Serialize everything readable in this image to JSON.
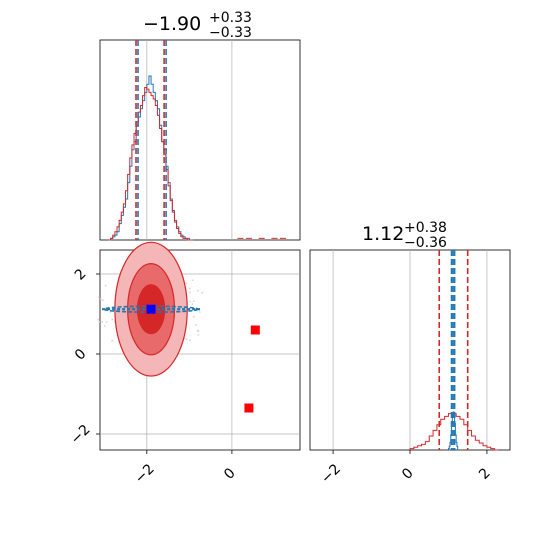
{
  "chart_data": {
    "type": "corner",
    "colors": {
      "blue": "#1f77b4",
      "red": "#d62728",
      "marker_blue": "#0000ff",
      "marker_red": "#ff0000",
      "grid": "#b0b0b0"
    },
    "param1": {
      "title_main": "−1.90",
      "title_plus": "+0.33",
      "title_minus": "−0.33",
      "range": [
        -3.1,
        1.6
      ],
      "quantile_lines": [
        -2.23,
        -1.9,
        -1.57
      ],
      "ticks": [
        -2,
        0
      ],
      "grid_lines": [
        -2,
        0
      ],
      "blue_bin_edges": [
        -2.9,
        -2.85,
        -2.8,
        -2.75,
        -2.7,
        -2.65,
        -2.6,
        -2.55,
        -2.5,
        -2.45,
        -2.4,
        -2.35,
        -2.3,
        -2.25,
        -2.2,
        -2.15,
        -2.1,
        -2.05,
        -2.0,
        -1.95,
        -1.9,
        -1.85,
        -1.8,
        -1.75,
        -1.7,
        -1.65,
        -1.6,
        -1.55,
        -1.5,
        -1.45,
        -1.4,
        -1.35,
        -1.3,
        -1.25,
        -1.2,
        -1.15,
        -1.1,
        -1.05,
        -1.0,
        -0.95,
        -0.9
      ],
      "blue_hist": [
        0,
        0.01,
        0.02,
        0.03,
        0.05,
        0.1,
        0.15,
        0.2,
        0.25,
        0.35,
        0.45,
        0.55,
        0.6,
        0.7,
        0.75,
        0.8,
        0.85,
        0.9,
        0.95,
        1.0,
        0.95,
        0.9,
        0.85,
        0.8,
        0.7,
        0.6,
        0.55,
        0.45,
        0.35,
        0.25,
        0.18,
        0.12,
        0.08,
        0.05,
        0.03,
        0.02,
        0.01,
        0.01,
        0.0,
        0.0
      ],
      "red_bin_edges": [
        -2.9,
        -2.85,
        -2.8,
        -2.75,
        -2.7,
        -2.65,
        -2.6,
        -2.55,
        -2.5,
        -2.45,
        -2.4,
        -2.35,
        -2.3,
        -2.25,
        -2.2,
        -2.15,
        -2.1,
        -2.05,
        -2.0,
        -1.95,
        -1.9,
        -1.85,
        -1.8,
        -1.75,
        -1.7,
        -1.65,
        -1.6,
        -1.55,
        -1.5,
        -1.45,
        -1.4,
        -1.35,
        -1.3,
        -1.25,
        -1.2,
        -1.15,
        -1.1,
        -1.05,
        -1.0,
        -0.95,
        -0.9
      ],
      "red_hist": [
        0,
        0.01,
        0.03,
        0.05,
        0.08,
        0.12,
        0.17,
        0.22,
        0.3,
        0.4,
        0.5,
        0.58,
        0.65,
        0.72,
        0.78,
        0.82,
        0.88,
        0.93,
        0.92,
        0.9,
        0.88,
        0.86,
        0.82,
        0.76,
        0.68,
        0.6,
        0.52,
        0.43,
        0.33,
        0.24,
        0.17,
        0.11,
        0.07,
        0.04,
        0.02,
        0.01,
        0.01,
        0.0,
        0.0,
        0.0
      ],
      "red_tail": [
        [
          0.2,
          0.01
        ],
        [
          0.4,
          0.01
        ],
        [
          0.7,
          0.01
        ],
        [
          1.0,
          0.01
        ],
        [
          1.2,
          0.01
        ]
      ]
    },
    "param2": {
      "title_main": "1.12",
      "title_plus": "+0.38",
      "title_minus": "−0.36",
      "range": [
        -2.6,
        2.6
      ],
      "red_quantile_lines": [
        0.76,
        1.12,
        1.5
      ],
      "blue_quantile_lines": [
        1.08,
        1.12,
        1.16
      ],
      "ticks": [
        -2,
        0,
        2
      ],
      "grid_lines": [
        -2,
        0,
        2
      ],
      "red_hist_x": [
        0.0,
        0.1,
        0.2,
        0.3,
        0.4,
        0.5,
        0.6,
        0.7,
        0.8,
        0.9,
        1.0,
        1.1,
        1.2,
        1.3,
        1.4,
        1.5,
        1.6,
        1.7,
        1.8,
        1.9,
        2.0,
        2.1,
        2.2
      ],
      "red_hist": [
        0.005,
        0.01,
        0.015,
        0.02,
        0.03,
        0.05,
        0.07,
        0.09,
        0.11,
        0.12,
        0.13,
        0.13,
        0.12,
        0.11,
        0.09,
        0.07,
        0.05,
        0.035,
        0.025,
        0.015,
        0.01,
        0.005,
        0.0
      ],
      "blue_hist_x": [
        1.0,
        1.02,
        1.04,
        1.06,
        1.08,
        1.1,
        1.12,
        1.14,
        1.16,
        1.18,
        1.2,
        1.22,
        1.24
      ],
      "blue_hist": [
        0.02,
        0.05,
        0.1,
        0.2,
        0.35,
        0.45,
        0.5,
        0.45,
        0.35,
        0.2,
        0.1,
        0.05,
        0.0
      ]
    },
    "joint": {
      "x_range": [
        -3.1,
        1.6
      ],
      "y_range": [
        -2.4,
        2.6
      ],
      "x_ticks": [
        -2,
        0
      ],
      "y_ticks": [
        -2,
        0,
        2
      ],
      "center": [
        -1.9,
        1.12
      ],
      "red_contours": [
        [
          0.32,
          0.32
        ],
        [
          0.6,
          0.55
        ],
        [
          0.88,
          0.85
        ]
      ],
      "blue_ellipse": [
        1.1,
        0.05
      ],
      "red_points": [
        [
          0.55,
          0.6
        ],
        [
          0.4,
          -1.35
        ]
      ],
      "blue_point": [
        -1.9,
        1.12
      ]
    }
  }
}
